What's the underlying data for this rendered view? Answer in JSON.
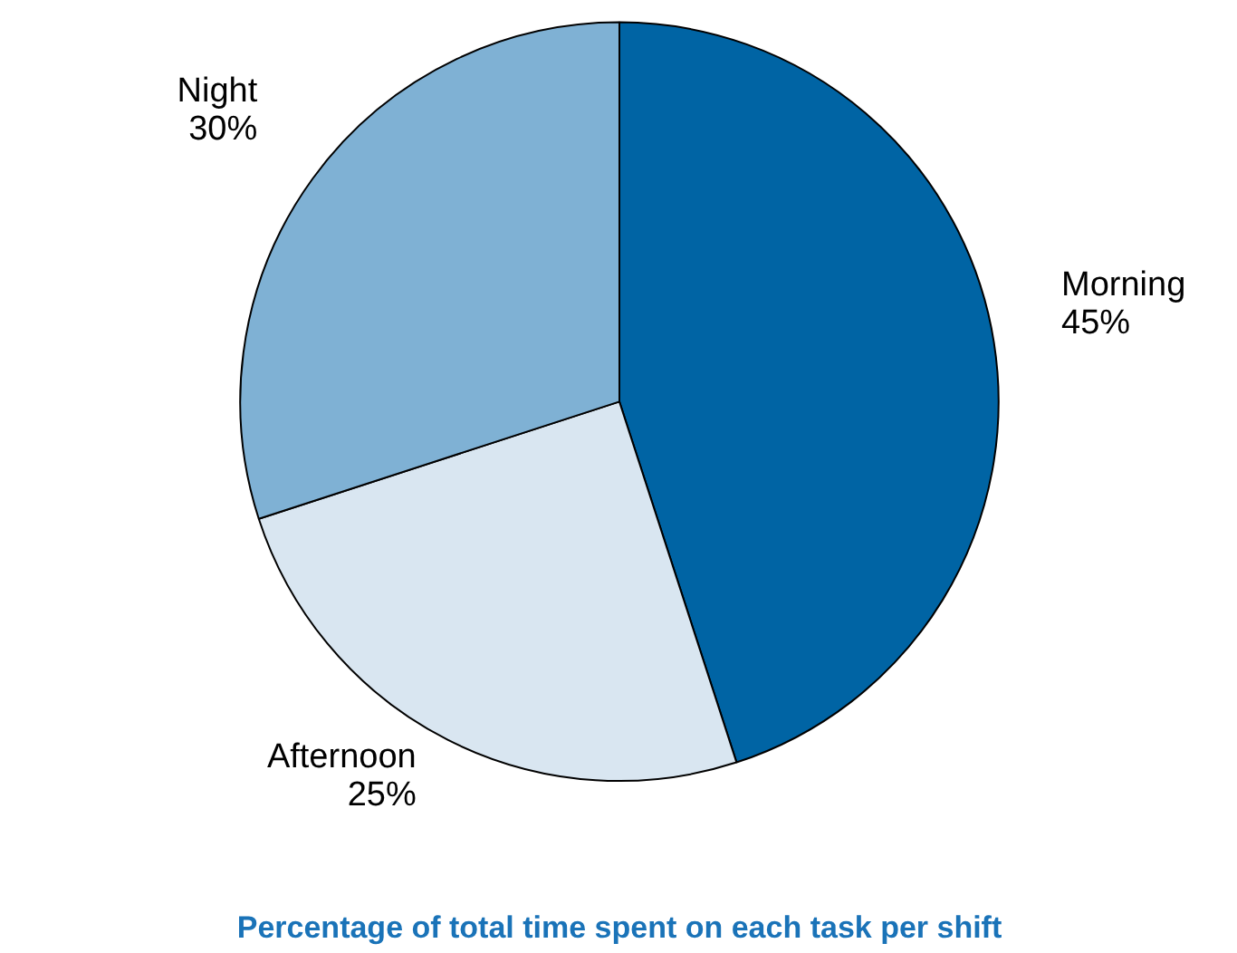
{
  "chart_data": {
    "type": "pie",
    "title": "Percentage of total time spent on each task per shift",
    "categories": [
      "Morning",
      "Afternoon",
      "Night"
    ],
    "values": [
      45,
      25,
      30
    ],
    "value_labels": [
      "45%",
      "25%",
      "30%"
    ],
    "colors": [
      "#0064a4",
      "#d9e6f1",
      "#7fb1d4"
    ]
  }
}
